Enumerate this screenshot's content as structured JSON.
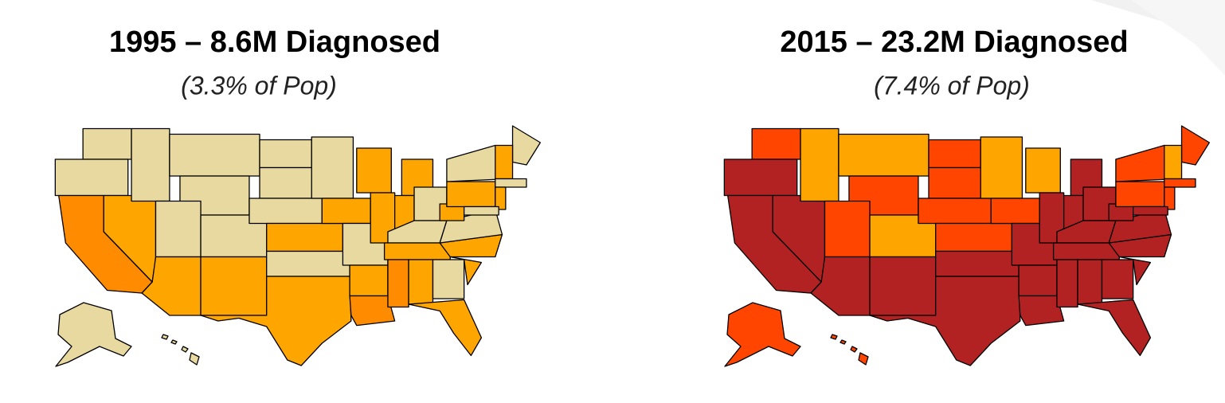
{
  "maps": [
    {
      "title": "1995 – 8.6M Diagnosed",
      "subtitle": "(3.3% of Pop)"
    },
    {
      "title": "2015 – 23.2M Diagnosed",
      "subtitle": "(7.4% of Pop)"
    }
  ]
}
